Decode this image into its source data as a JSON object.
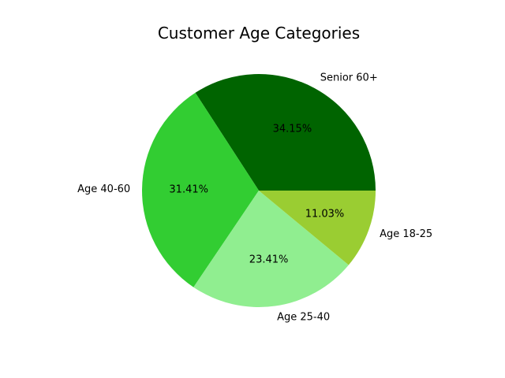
{
  "chart_data": {
    "type": "pie",
    "title": "Customer Age Categories",
    "start_angle_deg": 0,
    "direction": "counterclockwise",
    "slices": [
      {
        "label": "Senior 60+",
        "percent": 34.15,
        "percent_label": "34.15%",
        "color": "#006400"
      },
      {
        "label": "Age 40-60",
        "percent": 31.41,
        "percent_label": "31.41%",
        "color": "#32CD32"
      },
      {
        "label": "Age 25-40",
        "percent": 23.41,
        "percent_label": "23.41%",
        "color": "#90EE90"
      },
      {
        "label": "Age 18-25",
        "percent": 11.03,
        "percent_label": "11.03%",
        "color": "#9ACD32"
      }
    ]
  }
}
